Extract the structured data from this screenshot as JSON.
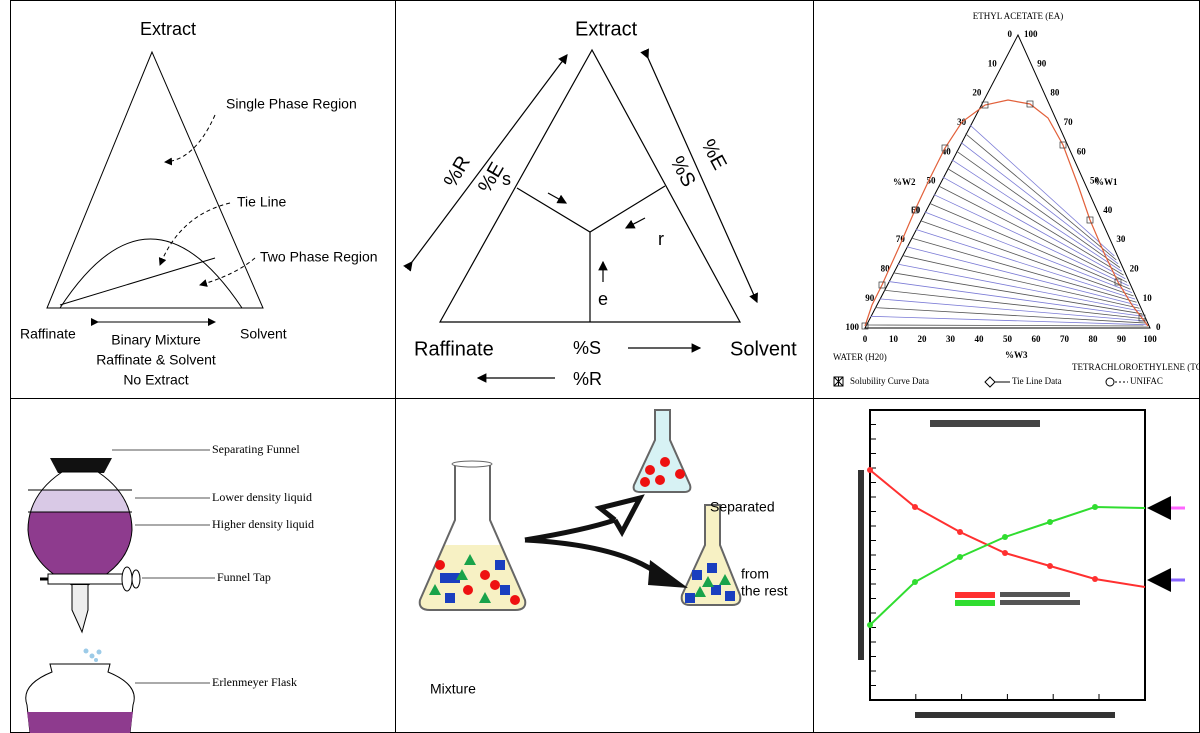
{
  "triangle_diagram": {
    "apex": "Extract",
    "single_phase": "Single Phase Region",
    "tie_line": "Tie Line",
    "two_phase": "Two Phase Region",
    "left": "Raffinate",
    "right": "Solvent",
    "note": [
      "Binary Mixture",
      "Raffinate & Solvent",
      "No Extract"
    ]
  },
  "composition_diagram": {
    "apex": "Extract",
    "left_outer": "%R",
    "left_inner": "%E",
    "right_outer": "%E",
    "right_inner": "%S",
    "s": "s",
    "r": "r",
    "e": "e",
    "left": "Raffinate",
    "right": "Solvent",
    "bottom_upper": "%S",
    "bottom_lower": "%R"
  },
  "ternary": {
    "apex": "ETHYL ACETATE (EA)",
    "left_ticks": [
      0,
      10,
      20,
      30,
      40,
      50,
      60,
      70,
      80,
      90,
      100
    ],
    "right_ticks": [
      100,
      90,
      80,
      70,
      60,
      50,
      40,
      30,
      20,
      10,
      0
    ],
    "bottom_ticks": [
      0,
      10,
      20,
      30,
      40,
      50,
      60,
      70,
      80,
      90,
      100
    ],
    "left_axis": "%W2",
    "right_axis": "%W1",
    "bottom_axis": "%W3",
    "left_corner": "WATER (H20)",
    "right_corner": "TETRACHLOROETHYLENE (TCE)",
    "legend": [
      "Solubility Curve Data",
      "Tie Line Data",
      "UNIFAC"
    ]
  },
  "funnel": {
    "labels": [
      "Separating Funnel",
      "Lower density liquid",
      "Higher density liquid",
      "Funnel Tap",
      "Erlenmeyer Flask"
    ]
  },
  "flasks": {
    "separated": "Separated",
    "rest": [
      "from",
      "the rest"
    ],
    "mixture": "Mixture"
  }
}
